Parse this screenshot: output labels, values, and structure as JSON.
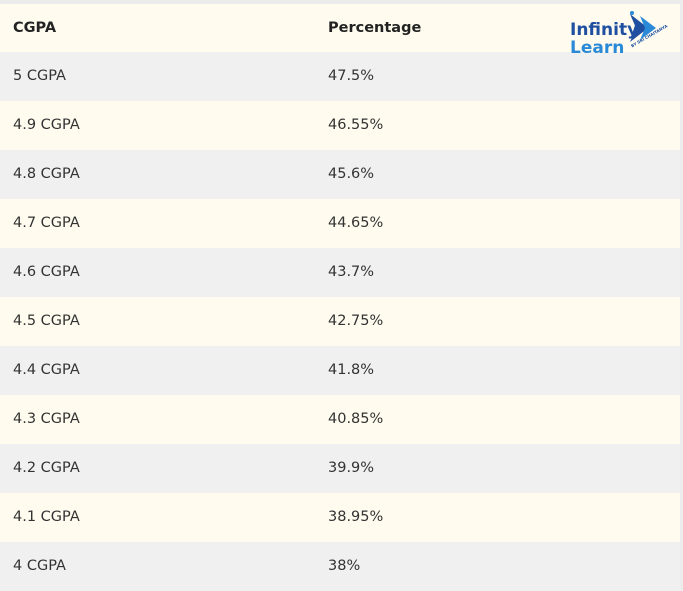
{
  "logo": {
    "line1": "Infinity",
    "line2": "Learn",
    "tagline": "BY SRI CHAITANYA"
  },
  "table": {
    "header": [
      "CGPA",
      "Percentage"
    ],
    "rows": [
      [
        "5 CGPA",
        "47.5%"
      ],
      [
        "4.9 CGPA",
        "46.55%"
      ],
      [
        "4.8 CGPA",
        "45.6%"
      ],
      [
        "4.7 CGPA",
        "44.65%"
      ],
      [
        "4.6 CGPA",
        "43.7%"
      ],
      [
        "4.5 CGPA",
        "42.75%"
      ],
      [
        "4.4 CGPA",
        "41.8%"
      ],
      [
        "4.3 CGPA",
        "40.85%"
      ],
      [
        "4.2 CGPA",
        "39.9%"
      ],
      [
        "4.1 CGPA",
        "38.95%"
      ],
      [
        "4 CGPA",
        "38%"
      ]
    ]
  }
}
